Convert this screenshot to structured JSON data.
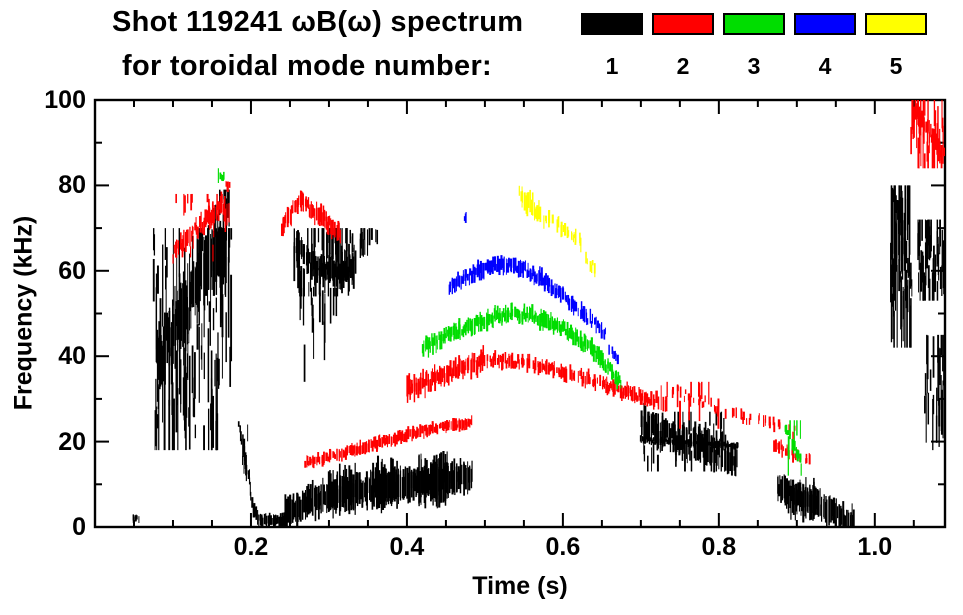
{
  "chart_data": {
    "type": "scatter",
    "subtype": "mode-spectrogram",
    "title": "Shot 119241 ωB(ω) spectrum",
    "subtitle": "for toroidal mode number:",
    "xlabel": "Time (s)",
    "ylabel": "Frequency (kHz)",
    "xlim": [
      0,
      1.09
    ],
    "ylim": [
      0,
      100
    ],
    "x_major_ticks": [
      0.2,
      0.4,
      0.6,
      0.8,
      1.0
    ],
    "x_tick_labels": [
      "0.2",
      "0.4",
      "0.6",
      "0.8",
      "1.0"
    ],
    "x_minor_step": 0.05,
    "y_major_ticks": [
      0,
      20,
      40,
      60,
      80,
      100
    ],
    "y_tick_labels": [
      "0",
      "20",
      "40",
      "60",
      "80",
      "100"
    ],
    "y_minor_step": 10,
    "grid": false,
    "legend": {
      "position": "top-right",
      "items": [
        {
          "label": "1",
          "color": "#000000"
        },
        {
          "label": "2",
          "color": "#ff0000"
        },
        {
          "label": "3",
          "color": "#00dd00"
        },
        {
          "label": "4",
          "color": "#0000ff"
        },
        {
          "label": "5",
          "color": "#ffff00"
        }
      ]
    },
    "series": [
      {
        "name": "toroidal mode n=1",
        "mode": 1,
        "color": "#000000",
        "strokes": [
          {
            "kind": "streaks",
            "t": [
              0.075,
              0.175
            ],
            "f": [
              18,
              70
            ],
            "count": 130,
            "len": [
              3,
              22
            ]
          },
          {
            "kind": "trace",
            "pts": [
              [
                0.08,
                38
              ],
              [
                0.11,
                50
              ],
              [
                0.14,
                60
              ],
              [
                0.165,
                66
              ]
            ],
            "w": 13,
            "density": 1,
            "jitter": 2
          },
          {
            "kind": "streaks",
            "t": [
              0.15,
              0.172
            ],
            "f": [
              58,
              79
            ],
            "count": 18,
            "len": [
              4,
              14
            ]
          },
          {
            "kind": "trace",
            "pts": [
              [
                0.185,
                24
              ],
              [
                0.196,
                12
              ],
              [
                0.203,
                4
              ],
              [
                0.212,
                1.5
              ],
              [
                0.245,
                1.5
              ]
            ],
            "w": 2.5,
            "density": 1,
            "jitter": 0.4
          },
          {
            "kind": "streaks",
            "t": [
              0.188,
              0.202
            ],
            "f": [
              10,
              24
            ],
            "count": 8,
            "len": [
              2,
              6
            ]
          },
          {
            "kind": "trace",
            "pts": [
              [
                0.245,
                3.5
              ],
              [
                0.28,
                6
              ],
              [
                0.32,
                8
              ],
              [
                0.36,
                9
              ],
              [
                0.4,
                10
              ],
              [
                0.44,
                11
              ],
              [
                0.485,
                12.5
              ]
            ],
            "w": 6,
            "density": 1,
            "jitter": 1.2
          },
          {
            "kind": "trace",
            "pts": [
              [
                0.3,
                8
              ],
              [
                0.335,
                9
              ]
            ],
            "w": 9,
            "density": 1,
            "jitter": 1
          },
          {
            "kind": "trace",
            "pts": [
              [
                0.355,
                9.5
              ],
              [
                0.39,
                10.5
              ]
            ],
            "w": 9,
            "density": 1,
            "jitter": 1
          },
          {
            "kind": "trace",
            "pts": [
              [
                0.415,
                10.5
              ],
              [
                0.455,
                11.5
              ]
            ],
            "w": 9,
            "density": 1,
            "jitter": 1
          },
          {
            "kind": "streaks",
            "t": [
              0.255,
              0.335
            ],
            "f": [
              54,
              70
            ],
            "count": 80,
            "len": [
              3,
              12
            ]
          },
          {
            "kind": "trace",
            "pts": [
              [
                0.255,
                66
              ],
              [
                0.285,
                61
              ],
              [
                0.315,
                59
              ],
              [
                0.335,
                62
              ]
            ],
            "w": 5,
            "density": 1,
            "jitter": 1.2
          },
          {
            "kind": "streaks",
            "t": [
              0.26,
              0.31
            ],
            "f": [
              34,
              56
            ],
            "count": 16,
            "len": [
              4,
              14
            ]
          },
          {
            "kind": "streaks",
            "t": [
              0.34,
              0.365
            ],
            "f": [
              63,
              70
            ],
            "count": 14,
            "len": [
              3,
              7
            ]
          },
          {
            "kind": "trace",
            "pts": [
              [
                0.7,
                24
              ],
              [
                0.745,
                21
              ],
              [
                0.79,
                18
              ],
              [
                0.825,
                16
              ]
            ],
            "w": 6,
            "density": 1,
            "jitter": 1.5
          },
          {
            "kind": "trace",
            "pts": [
              [
                0.7,
                20.5
              ],
              [
                0.825,
                19
              ]
            ],
            "w": 1.2,
            "density": 0.9,
            "jitter": 0.3
          },
          {
            "kind": "streaks",
            "t": [
              0.7,
              0.81
            ],
            "f": [
              13,
              27
            ],
            "count": 40,
            "len": [
              3,
              9
            ]
          },
          {
            "kind": "trace",
            "pts": [
              [
                0.875,
                9.5
              ],
              [
                0.9,
                7.5
              ],
              [
                0.93,
                5
              ],
              [
                0.955,
                2.5
              ],
              [
                0.975,
                1
              ]
            ],
            "w": 5,
            "density": 1,
            "jitter": 1
          },
          {
            "kind": "trace",
            "pts": [
              [
                0.885,
                7
              ],
              [
                0.925,
                6
              ]
            ],
            "w": 7,
            "density": 1,
            "jitter": 1
          },
          {
            "kind": "streaks",
            "t": [
              1.02,
              1.047
            ],
            "f": [
              42,
              80
            ],
            "count": 55,
            "len": [
              5,
              24
            ]
          },
          {
            "kind": "trace",
            "pts": [
              [
                1.024,
                78
              ],
              [
                1.032,
                71
              ],
              [
                1.041,
                63
              ],
              [
                1.048,
                56
              ]
            ],
            "w": 4,
            "density": 1,
            "jitter": 1.5
          },
          {
            "kind": "streaks",
            "t": [
              1.055,
              1.09
            ],
            "f": [
              53,
              72
            ],
            "count": 50,
            "len": [
              4,
              12
            ]
          },
          {
            "kind": "streaks",
            "t": [
              1.063,
              1.09
            ],
            "f": [
              18,
              45
            ],
            "count": 26,
            "len": [
              4,
              14
            ]
          },
          {
            "kind": "trace",
            "pts": [
              [
                0.047,
                2
              ],
              [
                0.057,
                2
              ]
            ],
            "w": 1.5,
            "density": 0.8,
            "jitter": 0.3
          }
        ]
      },
      {
        "name": "toroidal mode n=2",
        "mode": 2,
        "color": "#ff0000",
        "strokes": [
          {
            "kind": "trace",
            "pts": [
              [
                0.1,
                64
              ],
              [
                0.125,
                69
              ],
              [
                0.15,
                73
              ],
              [
                0.168,
                76
              ]
            ],
            "w": 3.5,
            "density": 0.95,
            "jitter": 1.3
          },
          {
            "kind": "streaks",
            "t": [
              0.1,
              0.172
            ],
            "f": [
              62,
              78
            ],
            "count": 22,
            "len": [
              2,
              6
            ]
          },
          {
            "kind": "trace",
            "pts": [
              [
                0.168,
                80
              ],
              [
                0.174,
                80
              ]
            ],
            "w": 2,
            "density": 0.8,
            "jitter": 0.5
          },
          {
            "kind": "trace",
            "pts": [
              [
                0.24,
                70
              ],
              [
                0.253,
                74
              ],
              [
                0.263,
                76.5
              ],
              [
                0.28,
                74
              ],
              [
                0.3,
                71
              ],
              [
                0.315,
                68
              ]
            ],
            "w": 3.5,
            "density": 0.95,
            "jitter": 1.2
          },
          {
            "kind": "trace",
            "pts": [
              [
                0.27,
                15
              ],
              [
                0.32,
                17.5
              ],
              [
                0.37,
                20
              ],
              [
                0.42,
                22.5
              ],
              [
                0.465,
                24
              ],
              [
                0.485,
                24.5
              ]
            ],
            "w": 2.2,
            "density": 0.9,
            "jitter": 0.6
          },
          {
            "kind": "trace",
            "pts": [
              [
                0.4,
                32
              ],
              [
                0.44,
                35
              ],
              [
                0.475,
                37.5
              ],
              [
                0.5,
                39.5
              ]
            ],
            "w": 3.6,
            "density": 1,
            "jitter": 1.4
          },
          {
            "kind": "trace",
            "pts": [
              [
                0.5,
                39.5
              ],
              [
                0.55,
                38.5
              ],
              [
                0.6,
                36.5
              ],
              [
                0.65,
                33.5
              ],
              [
                0.7,
                30.5
              ],
              [
                0.735,
                29
              ]
            ],
            "w": 2.6,
            "density": 0.8,
            "jitter": 0.9
          },
          {
            "kind": "trace",
            "pts": [
              [
                0.74,
                32
              ],
              [
                0.79,
                28.5
              ],
              [
                0.84,
                25.5
              ],
              [
                0.9,
                22
              ]
            ],
            "w": 2,
            "density": 0.35,
            "jitter": 1.2
          },
          {
            "kind": "streaks",
            "t": [
              0.725,
              0.8
            ],
            "f": [
              23,
              34
            ],
            "count": 12,
            "len": [
              3,
              9
            ]
          },
          {
            "kind": "trace",
            "pts": [
              [
                0.87,
                19.5
              ],
              [
                0.9,
                16.5
              ],
              [
                0.92,
                15
              ]
            ],
            "w": 2.2,
            "density": 0.6,
            "jitter": 0.8
          },
          {
            "kind": "streaks",
            "t": [
              1.045,
              1.09
            ],
            "f": [
              84,
              100
            ],
            "count": 40,
            "len": [
              3,
              12
            ]
          },
          {
            "kind": "trace",
            "pts": [
              [
                1.05,
                98
              ],
              [
                1.065,
                94
              ],
              [
                1.08,
                89
              ],
              [
                1.09,
                86.5
              ]
            ],
            "w": 3,
            "density": 0.9,
            "jitter": 1.5
          }
        ]
      },
      {
        "name": "toroidal mode n=3",
        "mode": 3,
        "color": "#00dd00",
        "strokes": [
          {
            "kind": "trace",
            "pts": [
              [
                0.159,
                82
              ],
              [
                0.167,
                82
              ]
            ],
            "w": 2.5,
            "density": 0.9,
            "jitter": 0.5
          },
          {
            "kind": "trace",
            "pts": [
              [
                0.42,
                42
              ],
              [
                0.46,
                45.5
              ],
              [
                0.5,
                48.5
              ],
              [
                0.53,
                50
              ],
              [
                0.56,
                49.5
              ],
              [
                0.6,
                46.5
              ],
              [
                0.635,
                42
              ],
              [
                0.665,
                36
              ],
              [
                0.675,
                33
              ]
            ],
            "w": 3,
            "density": 1,
            "jitter": 1
          },
          {
            "kind": "streaks",
            "t": [
              0.885,
              0.91
            ],
            "f": [
              12,
              25
            ],
            "count": 8,
            "len": [
              3,
              7
            ]
          },
          {
            "kind": "trace",
            "pts": [
              [
                0.885,
                23
              ],
              [
                0.9,
                18
              ],
              [
                0.91,
                13
              ]
            ],
            "w": 2,
            "density": 0.45,
            "jitter": 1
          }
        ]
      },
      {
        "name": "toroidal mode n=4",
        "mode": 4,
        "color": "#0000ff",
        "strokes": [
          {
            "kind": "trace",
            "pts": [
              [
                0.471,
                73
              ],
              [
                0.477,
                72
              ]
            ],
            "w": 2,
            "density": 0.8,
            "jitter": 0.5
          },
          {
            "kind": "trace",
            "pts": [
              [
                0.455,
                56
              ],
              [
                0.485,
                59.5
              ],
              [
                0.515,
                61.5
              ],
              [
                0.545,
                61
              ],
              [
                0.575,
                58
              ],
              [
                0.605,
                53.5
              ],
              [
                0.635,
                48.5
              ],
              [
                0.655,
                45
              ]
            ],
            "w": 2.8,
            "density": 0.95,
            "jitter": 0.9
          },
          {
            "kind": "trace",
            "pts": [
              [
                0.66,
                42
              ],
              [
                0.675,
                38.5
              ]
            ],
            "w": 2.2,
            "density": 0.55,
            "jitter": 0.8
          }
        ]
      },
      {
        "name": "toroidal mode n=5",
        "mode": 5,
        "color": "#ffff00",
        "strokes": [
          {
            "kind": "trace",
            "pts": [
              [
                0.545,
                78
              ],
              [
                0.558,
                75.5
              ],
              [
                0.572,
                73
              ]
            ],
            "w": 4,
            "density": 1,
            "jitter": 1
          },
          {
            "kind": "trace",
            "pts": [
              [
                0.575,
                72.5
              ],
              [
                0.6,
                70
              ],
              [
                0.625,
                66.5
              ]
            ],
            "w": 2.5,
            "density": 0.55,
            "jitter": 1
          },
          {
            "kind": "trace",
            "pts": [
              [
                0.63,
                63
              ],
              [
                0.645,
                59
              ]
            ],
            "w": 2.2,
            "density": 0.5,
            "jitter": 1
          }
        ]
      }
    ]
  }
}
